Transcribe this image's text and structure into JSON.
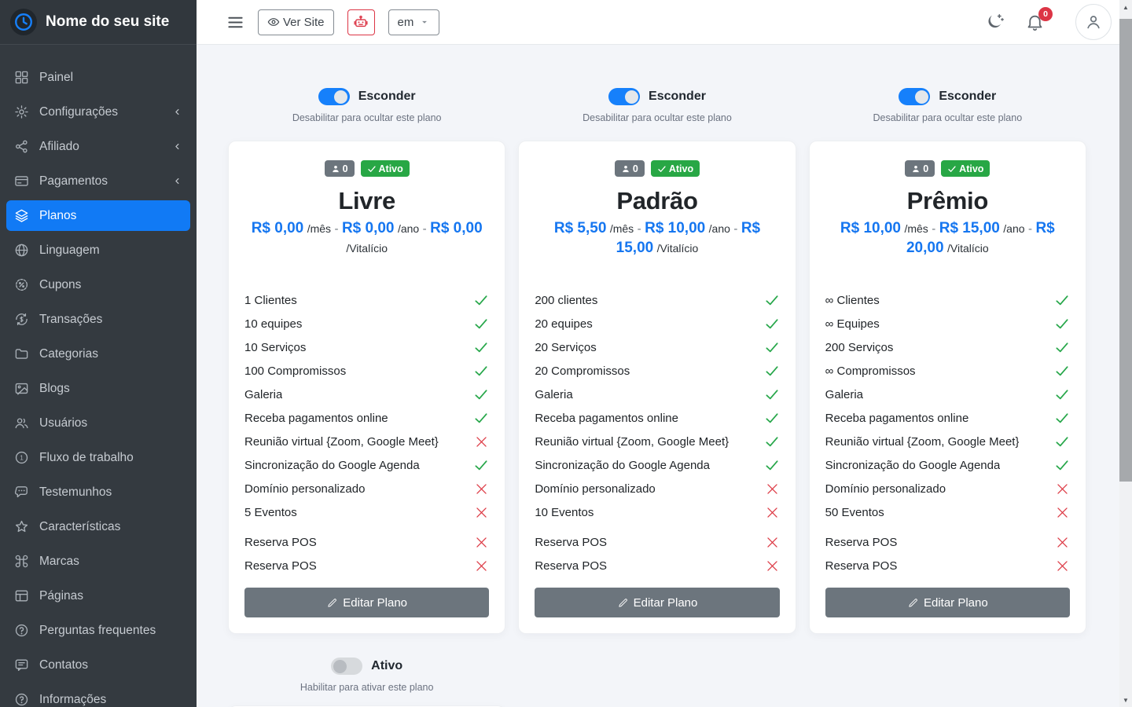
{
  "colors": {
    "accent": "#1680fb",
    "success": "#28a745",
    "danger": "#dc3545",
    "price_blue": "#1576f0",
    "sidebar_bg": "#343a40"
  },
  "brand": {
    "site_name": "Nome do seu site"
  },
  "topbar": {
    "ver_site_label": "Ver Site",
    "language_value": "em",
    "notifications_count": "0"
  },
  "sidebar": {
    "items": [
      {
        "label": "Painel",
        "icon": "grid",
        "active": false,
        "chevron": false
      },
      {
        "label": "Configurações",
        "icon": "gear",
        "active": false,
        "chevron": true
      },
      {
        "label": "Afiliado",
        "icon": "share",
        "active": false,
        "chevron": true
      },
      {
        "label": "Pagamentos",
        "icon": "credit-card",
        "active": false,
        "chevron": true
      },
      {
        "label": "Planos",
        "icon": "layers",
        "active": true,
        "chevron": false
      },
      {
        "label": "Linguagem",
        "icon": "globe",
        "active": false,
        "chevron": false
      },
      {
        "label": "Cupons",
        "icon": "coupon",
        "active": false,
        "chevron": false
      },
      {
        "label": "Transações",
        "icon": "transactions",
        "active": false,
        "chevron": false
      },
      {
        "label": "Categorias",
        "icon": "folder",
        "active": false,
        "chevron": false
      },
      {
        "label": "Blogs",
        "icon": "image",
        "active": false,
        "chevron": false
      },
      {
        "label": "Usuários",
        "icon": "users",
        "active": false,
        "chevron": false
      },
      {
        "label": "Fluxo de trabalho",
        "icon": "workflow",
        "active": false,
        "chevron": false
      },
      {
        "label": "Testemunhos",
        "icon": "chat",
        "active": false,
        "chevron": false
      },
      {
        "label": "Características",
        "icon": "star",
        "active": false,
        "chevron": false
      },
      {
        "label": "Marcas",
        "icon": "command",
        "active": false,
        "chevron": false
      },
      {
        "label": "Páginas",
        "icon": "layout",
        "active": false,
        "chevron": false
      },
      {
        "label": "Perguntas frequentes",
        "icon": "help-circle",
        "active": false,
        "chevron": false
      },
      {
        "label": "Contatos",
        "icon": "message",
        "active": false,
        "chevron": false
      },
      {
        "label": "Informações",
        "icon": "info-circle",
        "active": false,
        "chevron": false
      }
    ]
  },
  "plan_controls": {
    "hide_label": "Esconder",
    "hide_help": "Desabilitar para ocultar este plano",
    "active_label": "Ativo",
    "active_help": "Habilitar para ativar este plano",
    "price_separator": "-"
  },
  "plans": [
    {
      "name": "Livre",
      "subscriber_count": "0",
      "status_label": "Ativo",
      "edit_label": "Editar Plano",
      "prices": [
        {
          "amount": "R$ 0,00",
          "period": "/mês"
        },
        {
          "amount": "R$ 0,00",
          "period": "/ano"
        },
        {
          "amount": "R$ 0,00",
          "period": "/Vitalício"
        }
      ],
      "features": [
        {
          "label": "1 Clientes",
          "included": true
        },
        {
          "label": "10 equipes",
          "included": true
        },
        {
          "label": "10 Serviços",
          "included": true
        },
        {
          "label": "100 Compromissos",
          "included": true
        },
        {
          "label": "Galeria",
          "included": true
        },
        {
          "label": "Receba pagamentos online",
          "included": true
        },
        {
          "label": "Reunião virtual {Zoom, Google Meet}",
          "included": false
        },
        {
          "label": "Sincronização do Google Agenda",
          "included": true
        },
        {
          "label": "Domínio personalizado",
          "included": false
        },
        {
          "label": "5 Eventos",
          "included": false
        }
      ],
      "pos_features": [
        {
          "label": "Reserva POS",
          "included": false
        },
        {
          "label": "Reserva POS",
          "included": false
        }
      ]
    },
    {
      "name": "Padrão",
      "subscriber_count": "0",
      "status_label": "Ativo",
      "edit_label": "Editar Plano",
      "prices": [
        {
          "amount": "R$ 5,50",
          "period": "/mês"
        },
        {
          "amount": "R$ 10,00",
          "period": "/ano"
        },
        {
          "amount": "R$ 15,00",
          "period": "/Vitalício"
        }
      ],
      "features": [
        {
          "label": "200 clientes",
          "included": true
        },
        {
          "label": "20 equipes",
          "included": true
        },
        {
          "label": "20 Serviços",
          "included": true
        },
        {
          "label": "20 Compromissos",
          "included": true
        },
        {
          "label": "Galeria",
          "included": true
        },
        {
          "label": "Receba pagamentos online",
          "included": true
        },
        {
          "label": "Reunião virtual {Zoom, Google Meet}",
          "included": true
        },
        {
          "label": "Sincronização do Google Agenda",
          "included": true
        },
        {
          "label": "Domínio personalizado",
          "included": false
        },
        {
          "label": "10 Eventos",
          "included": false
        }
      ],
      "pos_features": [
        {
          "label": "Reserva POS",
          "included": false
        },
        {
          "label": "Reserva POS",
          "included": false
        }
      ]
    },
    {
      "name": "Prêmio",
      "subscriber_count": "0",
      "status_label": "Ativo",
      "edit_label": "Editar Plano",
      "prices": [
        {
          "amount": "R$ 10,00",
          "period": "/mês"
        },
        {
          "amount": "R$ 15,00",
          "period": "/ano"
        },
        {
          "amount": "R$ 20,00",
          "period": "/Vitalício"
        }
      ],
      "features": [
        {
          "label": "∞ Clientes",
          "included": true
        },
        {
          "label": "∞ Equipes",
          "included": true
        },
        {
          "label": "200 Serviços",
          "included": true
        },
        {
          "label": "∞ Compromissos",
          "included": true
        },
        {
          "label": "Galeria",
          "included": true
        },
        {
          "label": "Receba pagamentos online",
          "included": true
        },
        {
          "label": "Reunião virtual {Zoom, Google Meet}",
          "included": true
        },
        {
          "label": "Sincronização do Google Agenda",
          "included": true
        },
        {
          "label": "Domínio personalizado",
          "included": false
        },
        {
          "label": "50 Eventos",
          "included": false
        }
      ],
      "pos_features": [
        {
          "label": "Reserva POS",
          "included": false
        },
        {
          "label": "Reserva POS",
          "included": false
        }
      ]
    }
  ]
}
